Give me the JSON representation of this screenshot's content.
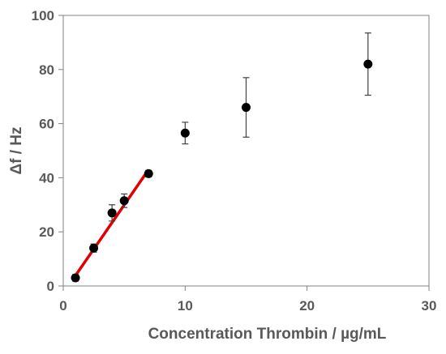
{
  "chart_data": {
    "type": "scatter",
    "title": "",
    "xlabel": "Concentration Thrombin  /  µg/mL",
    "ylabel": "Δf / Hz",
    "xlim": [
      0,
      30
    ],
    "ylim": [
      0,
      100
    ],
    "x_ticks": [
      0,
      10,
      20,
      30
    ],
    "y_ticks": [
      0,
      20,
      40,
      60,
      80,
      100
    ],
    "grid": false,
    "legend": "none",
    "series": [
      {
        "color": "#000000",
        "marker": "circle",
        "points": [
          {
            "x": 1.0,
            "y": 3.0,
            "err": 1.2
          },
          {
            "x": 2.5,
            "y": 14.0,
            "err": 1.5
          },
          {
            "x": 4.0,
            "y": 27.0,
            "err": 3.0
          },
          {
            "x": 5.0,
            "y": 31.5,
            "err": 2.5
          },
          {
            "x": 7.0,
            "y": 41.5,
            "err": 1.2
          },
          {
            "x": 10.0,
            "y": 56.5,
            "err": 4.0
          },
          {
            "x": 15.0,
            "y": 66.0,
            "err": 11.0
          },
          {
            "x": 25.0,
            "y": 82.0,
            "err": 11.5
          }
        ]
      }
    ],
    "fit_line": {
      "color": "#e00000",
      "x": [
        0.8,
        7.0
      ],
      "y": [
        2.5,
        43.0
      ]
    }
  }
}
